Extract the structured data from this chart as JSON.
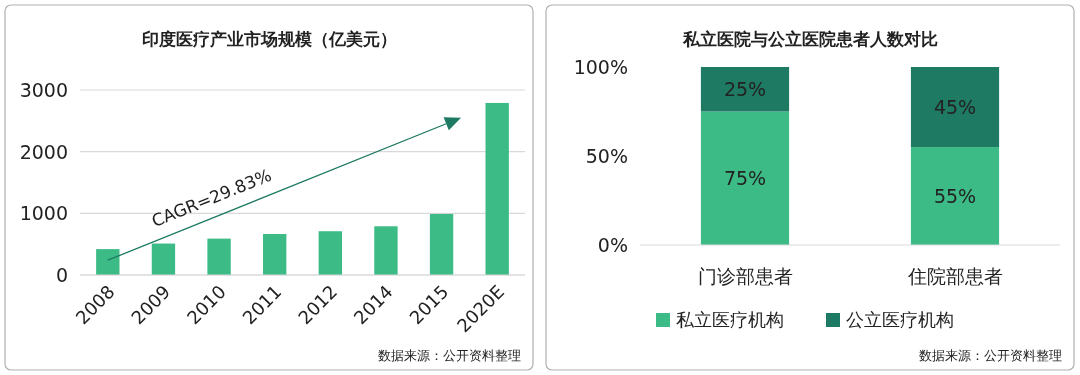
{
  "chart_data": [
    {
      "type": "bar",
      "title": "印度医疗产业市场规模（亿美元）",
      "categories": [
        "2008",
        "2009",
        "2010",
        "2011",
        "2012",
        "2014",
        "2015",
        "2020E"
      ],
      "values": [
        420,
        510,
        590,
        665,
        710,
        790,
        990,
        2790
      ],
      "color": "#3dbb86",
      "ylim": [
        0,
        3000
      ],
      "yticks": [
        0,
        1000,
        2000,
        3000
      ],
      "grid": "y",
      "annotations": [
        "CAGR=29.83%",
        "数据来源：公开资料整理"
      ]
    },
    {
      "type": "bar",
      "title": "私立医院与公立医院患者人数对比",
      "categories": [
        "门诊部患者",
        "住院部患者"
      ],
      "stacked": true,
      "series": [
        {
          "name": "私立医疗机构",
          "color": "#3dbb86",
          "values": [
            75,
            55
          ],
          "value_labels": [
            "75%",
            "55%"
          ]
        },
        {
          "name": "公立医疗机构",
          "color": "#1e7a62",
          "values": [
            25,
            45
          ],
          "value_labels": [
            "25%",
            "45%"
          ]
        }
      ],
      "ylim": [
        0,
        100
      ],
      "yticks": [
        {
          "value": 0,
          "label": "0%"
        },
        {
          "value": 50,
          "label": "50%"
        },
        {
          "value": 100,
          "label": "100%"
        }
      ],
      "legend": "bottom",
      "annotations": [
        "数据来源：公开资料整理"
      ]
    }
  ]
}
